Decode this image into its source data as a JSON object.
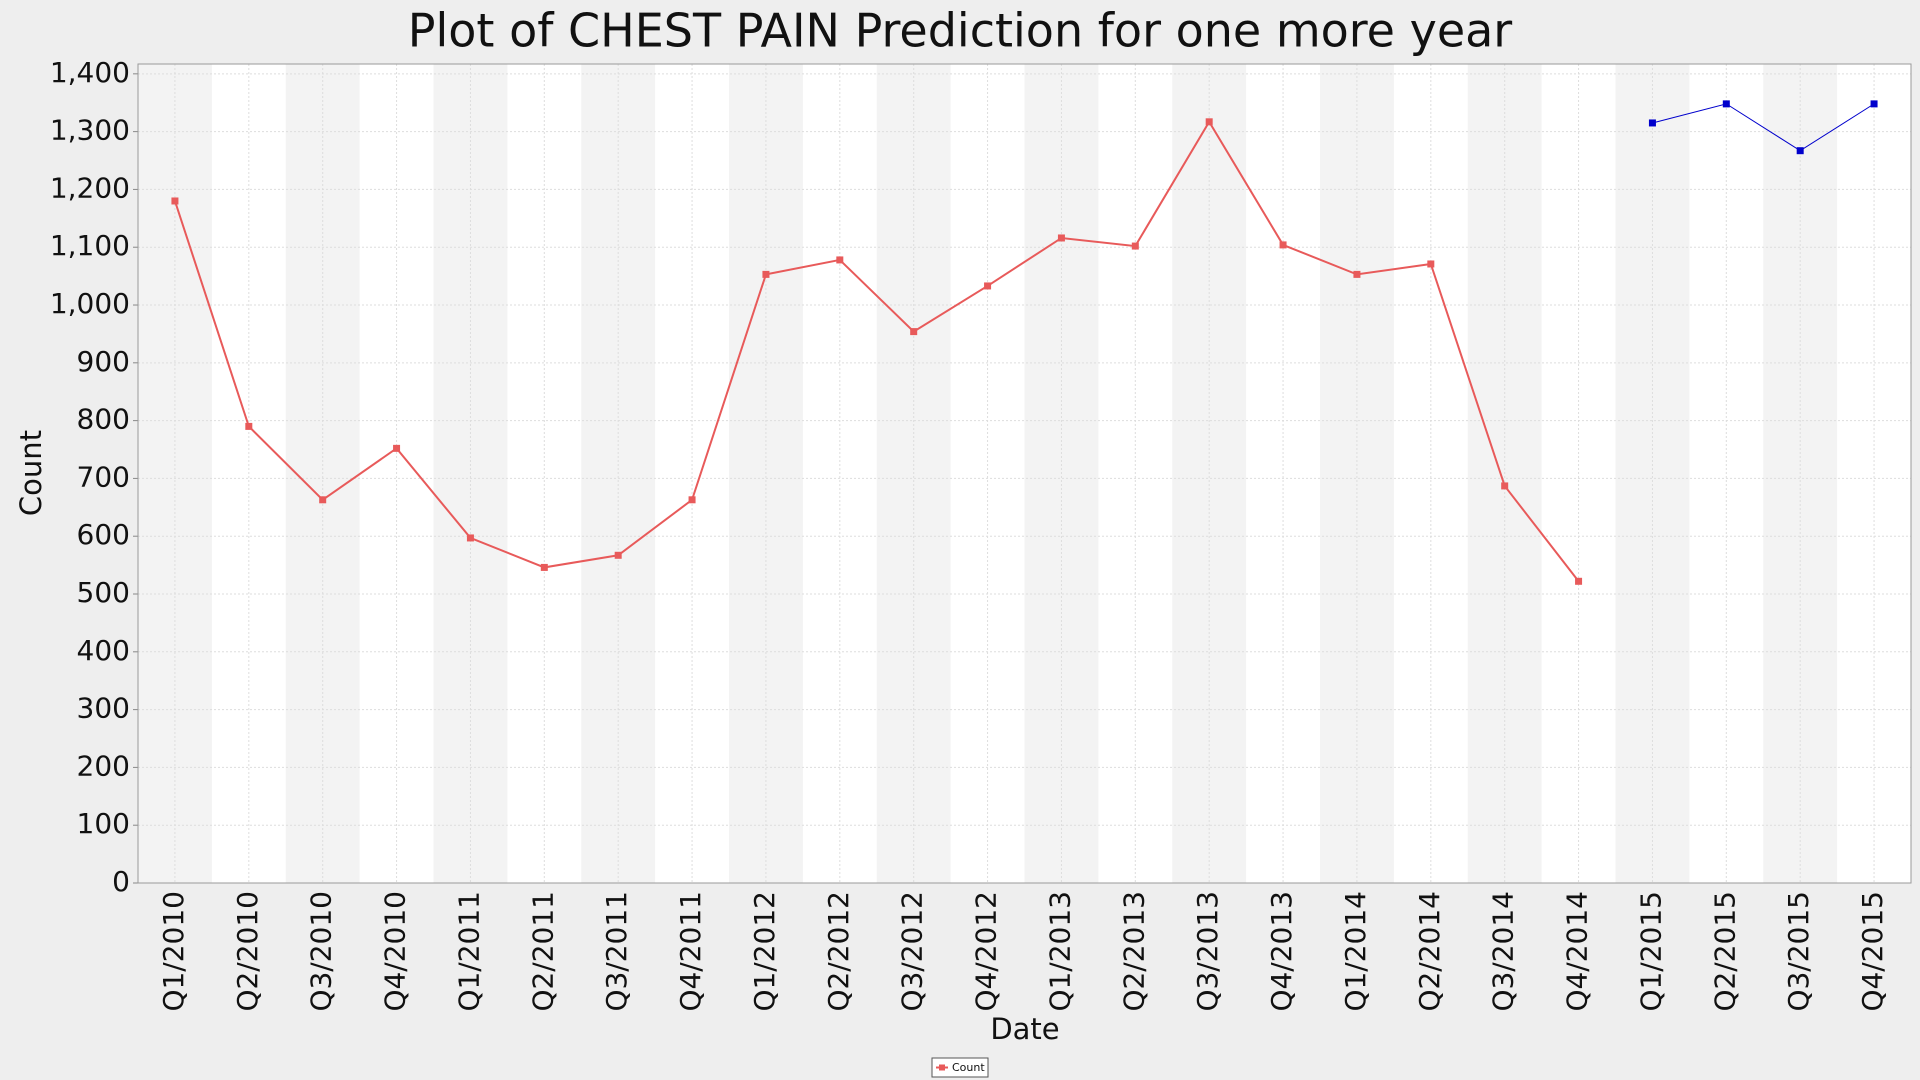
{
  "chart_data": {
    "type": "line",
    "title": "Plot of CHEST PAIN Prediction for one more year",
    "x_label": "Date",
    "y_label": "Count",
    "categories": [
      "Q1/2010",
      "Q2/2010",
      "Q3/2010",
      "Q4/2010",
      "Q1/2011",
      "Q2/2011",
      "Q3/2011",
      "Q4/2011",
      "Q1/2012",
      "Q2/2012",
      "Q3/2012",
      "Q4/2012",
      "Q1/2013",
      "Q2/2013",
      "Q3/2013",
      "Q4/2013",
      "Q1/2014",
      "Q2/2014",
      "Q3/2014",
      "Q4/2014",
      "Q1/2015",
      "Q2/2015",
      "Q3/2015",
      "Q4/2015"
    ],
    "series": [
      {
        "name": "Count",
        "color": "#e85a5a",
        "values": [
          1180,
          790,
          663,
          752,
          597,
          546,
          567,
          663,
          1053,
          1078,
          954,
          1033,
          1116,
          1102,
          1317,
          1104,
          1053,
          1071,
          687,
          522,
          null,
          null,
          null,
          null
        ]
      },
      {
        "color": "#0000cc",
        "values": [
          null,
          null,
          null,
          null,
          null,
          null,
          null,
          null,
          null,
          null,
          null,
          null,
          null,
          null,
          null,
          null,
          null,
          null,
          null,
          null,
          1315,
          1348,
          1267,
          1348
        ]
      }
    ],
    "ylim": [
      0,
      1417
    ],
    "yticks": [
      0,
      100,
      200,
      300,
      400,
      500,
      600,
      700,
      800,
      900,
      {
        "value": 1000,
        "label": "1,000"
      },
      {
        "value": 1100,
        "label": "1,100"
      },
      {
        "value": 1200,
        "label": "1,200"
      },
      {
        "value": 1300,
        "label": "1,300"
      },
      {
        "value": 1400,
        "label": "1,400"
      }
    ],
    "grid": true,
    "legend": "bottom"
  }
}
